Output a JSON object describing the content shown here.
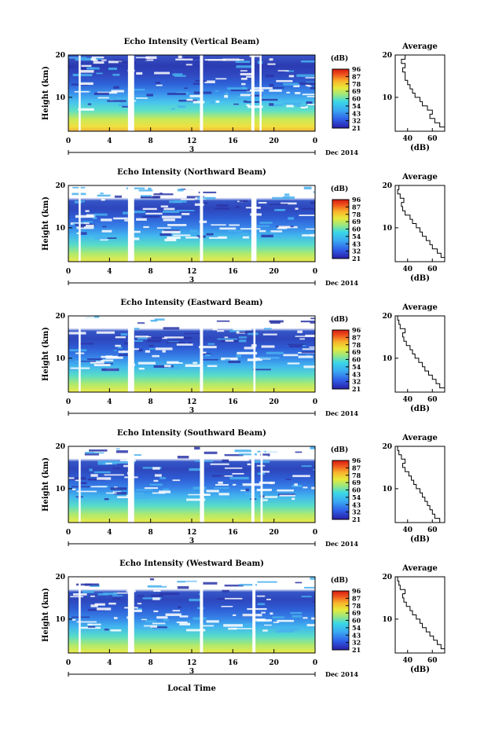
{
  "figure": {
    "xlabel": "Local Time",
    "date_label": "Dec 2014",
    "day_label": "3",
    "height_ylabel": "Height (km)",
    "colorbar_unit": "(dB)",
    "colorbar_ticks": [
      "96",
      "87",
      "78",
      "69",
      "60",
      "54",
      "43",
      "32",
      "21"
    ],
    "profile_title": "Average",
    "profile_xlabel": "(dB)"
  },
  "chart_data": [
    {
      "type": "heatmap",
      "title": "Echo Intensity (Vertical Beam)",
      "xlabel": "Local Time",
      "ylabel": "Height (km)",
      "xlim": [
        0,
        24
      ],
      "ylim": [
        2,
        20
      ],
      "xticks": [
        "0",
        "4",
        "8",
        "12",
        "16",
        "20",
        "0"
      ],
      "yticks": [
        "20",
        "10"
      ],
      "colorbar_ticks": [
        "96",
        "87",
        "78",
        "69",
        "60",
        "54",
        "43",
        "32",
        "21"
      ],
      "gaps_hours": [
        [
          1.0,
          1.2
        ],
        [
          5.8,
          6.4
        ],
        [
          12.8,
          13.1
        ],
        [
          17.8,
          18.1
        ],
        [
          18.6,
          18.8
        ]
      ],
      "profile": {
        "title": "Average",
        "xlabel": "(dB)",
        "xticks": [
          "40",
          "60"
        ],
        "xlim": [
          30,
          70
        ],
        "heights": [
          2,
          3,
          4,
          5,
          6,
          7,
          8,
          9,
          10,
          11,
          12,
          13,
          14,
          15,
          16,
          17,
          18,
          19,
          20
        ],
        "values": [
          70,
          66,
          62,
          58,
          60,
          56,
          52,
          50,
          46,
          44,
          42,
          40,
          38,
          38,
          36,
          38,
          35,
          38,
          34
        ]
      }
    },
    {
      "type": "heatmap",
      "title": "Echo Intensity (Northward Beam)",
      "xlabel": "Local Time",
      "ylabel": "Height (km)",
      "xlim": [
        0,
        24
      ],
      "ylim": [
        2,
        20
      ],
      "xticks": [
        "0",
        "4",
        "8",
        "12",
        "16",
        "20",
        "0"
      ],
      "yticks": [
        "20",
        "10"
      ],
      "colorbar_ticks": [
        "96",
        "87",
        "78",
        "69",
        "60",
        "54",
        "43",
        "32",
        "21"
      ],
      "gaps_hours": [
        [
          1.0,
          1.2
        ],
        [
          5.8,
          6.4
        ],
        [
          12.8,
          13.1
        ],
        [
          17.8,
          18.3
        ]
      ],
      "profile": {
        "title": "Average",
        "xlabel": "(dB)",
        "xticks": [
          "40",
          "60"
        ],
        "xlim": [
          30,
          70
        ],
        "heights": [
          2,
          3,
          4,
          5,
          6,
          7,
          8,
          9,
          10,
          11,
          12,
          13,
          14,
          15,
          16,
          17,
          18,
          19,
          20
        ],
        "values": [
          70,
          67,
          64,
          60,
          58,
          55,
          52,
          50,
          47,
          44,
          42,
          38,
          36,
          35,
          37,
          34,
          32,
          33,
          31
        ]
      }
    },
    {
      "type": "heatmap",
      "title": "Echo Intensity (Eastward Beam)",
      "xlabel": "Local Time",
      "ylabel": "Height (km)",
      "xlim": [
        0,
        24
      ],
      "ylim": [
        2,
        20
      ],
      "xticks": [
        "0",
        "4",
        "8",
        "12",
        "16",
        "20",
        "0"
      ],
      "yticks": [
        "20",
        "10"
      ],
      "colorbar_ticks": [
        "96",
        "87",
        "78",
        "69",
        "60",
        "54",
        "43",
        "32",
        "21"
      ],
      "gaps_hours": [
        [
          1.0,
          1.2
        ],
        [
          5.8,
          6.4
        ],
        [
          12.8,
          13.1
        ],
        [
          18.0,
          18.2
        ]
      ],
      "profile": {
        "title": "Average",
        "xlabel": "(dB)",
        "xticks": [
          "40",
          "60"
        ],
        "xlim": [
          30,
          70
        ],
        "heights": [
          2,
          3,
          4,
          5,
          6,
          7,
          8,
          9,
          10,
          11,
          12,
          13,
          14,
          15,
          16,
          17,
          18,
          19,
          20
        ],
        "values": [
          70,
          66,
          63,
          60,
          57,
          54,
          52,
          49,
          46,
          44,
          42,
          39,
          37,
          36,
          38,
          34,
          33,
          32,
          31
        ]
      }
    },
    {
      "type": "heatmap",
      "title": "Echo Intensity (Southward Beam)",
      "xlabel": "Local Time",
      "ylabel": "Height (km)",
      "xlim": [
        0,
        24
      ],
      "ylim": [
        2,
        20
      ],
      "xticks": [
        "0",
        "4",
        "8",
        "12",
        "16",
        "20",
        "0"
      ],
      "yticks": [
        "20",
        "10"
      ],
      "colorbar_ticks": [
        "96",
        "87",
        "78",
        "69",
        "60",
        "54",
        "43",
        "32",
        "21"
      ],
      "gaps_hours": [
        [
          1.0,
          1.2
        ],
        [
          5.8,
          6.4
        ],
        [
          12.8,
          13.2
        ],
        [
          17.8,
          18.1
        ],
        [
          18.7,
          18.9
        ]
      ],
      "profile": {
        "title": "Average",
        "xlabel": "(dB)",
        "xticks": [
          "40",
          "60"
        ],
        "xlim": [
          30,
          70
        ],
        "heights": [
          2,
          3,
          4,
          5,
          6,
          7,
          8,
          9,
          10,
          11,
          12,
          13,
          14,
          15,
          16,
          17,
          18,
          19,
          20
        ],
        "values": [
          66,
          62,
          60,
          58,
          56,
          54,
          52,
          50,
          47,
          45,
          43,
          41,
          38,
          36,
          38,
          35,
          33,
          32,
          31
        ]
      }
    },
    {
      "type": "heatmap",
      "title": "Echo Intensity (Westward Beam)",
      "xlabel": "Local Time",
      "ylabel": "Height (km)",
      "xlim": [
        0,
        24
      ],
      "ylim": [
        2,
        20
      ],
      "xticks": [
        "0",
        "4",
        "8",
        "12",
        "16",
        "20",
        "0"
      ],
      "yticks": [
        "20",
        "10"
      ],
      "colorbar_ticks": [
        "96",
        "87",
        "78",
        "69",
        "60",
        "54",
        "43",
        "32",
        "21"
      ],
      "gaps_hours": [
        [
          1.0,
          1.2
        ],
        [
          5.8,
          6.4
        ],
        [
          12.8,
          13.1
        ],
        [
          17.9,
          18.2
        ]
      ],
      "profile": {
        "title": "Average",
        "xlabel": "(dB)",
        "xticks": [
          "40",
          "60"
        ],
        "xlim": [
          30,
          70
        ],
        "heights": [
          2,
          3,
          4,
          5,
          6,
          7,
          8,
          9,
          10,
          11,
          12,
          13,
          14,
          15,
          16,
          17,
          18,
          19,
          20
        ],
        "values": [
          70,
          67,
          64,
          61,
          58,
          55,
          52,
          50,
          47,
          44,
          42,
          39,
          37,
          36,
          38,
          34,
          33,
          32,
          31
        ]
      }
    }
  ]
}
